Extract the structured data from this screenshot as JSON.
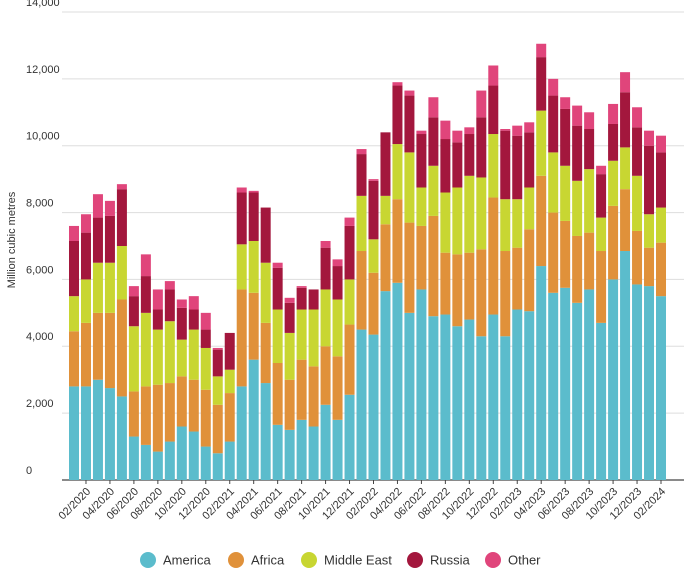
{
  "chart_data": {
    "type": "stacked_bar",
    "y_label": "Million cubic metres",
    "categories": [
      null,
      "02/2020",
      null,
      "04/2020",
      null,
      "06/2020",
      null,
      "08/2020",
      null,
      "10/2020",
      null,
      "12/2020",
      null,
      "02/2021",
      null,
      "04/2021",
      null,
      "06/2021",
      null,
      "08/2021",
      null,
      "10/2021",
      null,
      "12/2021",
      null,
      "02/2022",
      null,
      "04/2022",
      null,
      "06/2022",
      null,
      "08/2022",
      null,
      "10/2022",
      null,
      "12/2022",
      null,
      "02/2023",
      null,
      "04/2023",
      null,
      "06/2023",
      null,
      "08/2023",
      null,
      "10/2023",
      null,
      "12/2023",
      null,
      "02/2024"
    ],
    "series": [
      {
        "name": "America",
        "color": "#5bbccc",
        "values": [
          2800,
          2800,
          3000,
          2750,
          2500,
          1300,
          1050,
          850,
          1150,
          1600,
          1450,
          1000,
          800,
          1150,
          2800,
          3600,
          2900,
          1650,
          1500,
          1800,
          1600,
          2250,
          1800,
          2550,
          4500,
          4350,
          5650,
          5900,
          5000,
          5700,
          4900,
          4950,
          4600,
          4800,
          4300,
          4950,
          4300,
          5100,
          5050,
          6400,
          5600,
          5750,
          5300,
          5700,
          4700,
          6000,
          6850,
          5850,
          5800,
          5500
        ]
      },
      {
        "name": "Africa",
        "color": "#e0913a",
        "values": [
          1650,
          1900,
          2000,
          2250,
          2900,
          1350,
          1750,
          2000,
          1750,
          1500,
          1550,
          1700,
          1450,
          1450,
          2900,
          2000,
          1800,
          1850,
          1500,
          1800,
          1800,
          1750,
          1900,
          2100,
          2350,
          1850,
          2000,
          2500,
          2700,
          1900,
          3000,
          1850,
          2150,
          2000,
          2600,
          3500,
          2550,
          1850,
          2450,
          2700,
          2400,
          2000,
          2000,
          1700,
          2150,
          2200,
          1850,
          1600,
          1150,
          1600
        ]
      },
      {
        "name": "Middle East",
        "color": "#c8d632",
        "values": [
          1050,
          1300,
          1500,
          1500,
          1600,
          1950,
          2200,
          1650,
          1850,
          1100,
          1500,
          1250,
          850,
          700,
          1350,
          1550,
          1800,
          1600,
          1400,
          1500,
          1700,
          1700,
          1700,
          1350,
          1650,
          1000,
          850,
          1650,
          2100,
          1150,
          1500,
          1800,
          2000,
          2300,
          2150,
          1900,
          1550,
          1450,
          1250,
          1950,
          1800,
          1650,
          1650,
          1900,
          1000,
          1350,
          1250,
          1650,
          1000,
          1050
        ]
      },
      {
        "name": "Russia",
        "color": "#a3173d",
        "values": [
          1650,
          1400,
          1350,
          1400,
          1700,
          900,
          1100,
          600,
          950,
          950,
          600,
          550,
          800,
          1100,
          1550,
          1450,
          1650,
          1250,
          900,
          650,
          600,
          1250,
          1000,
          1600,
          1250,
          1750,
          1900,
          1750,
          1700,
          1600,
          1450,
          1600,
          1350,
          1250,
          1800,
          1450,
          2050,
          1900,
          1650,
          1600,
          1700,
          1700,
          1650,
          1200,
          1300,
          1100,
          1650,
          1450,
          2050,
          1650
        ]
      },
      {
        "name": "Other",
        "color": "#e0457b",
        "values": [
          450,
          550,
          700,
          450,
          150,
          300,
          650,
          600,
          250,
          250,
          400,
          500,
          50,
          0,
          150,
          50,
          0,
          150,
          150,
          50,
          0,
          200,
          200,
          250,
          150,
          50,
          0,
          100,
          150,
          100,
          600,
          550,
          350,
          200,
          800,
          600,
          50,
          300,
          300,
          400,
          500,
          350,
          600,
          500,
          250,
          600,
          600,
          600,
          450,
          500
        ]
      }
    ],
    "ylim": [
      0,
      14000
    ],
    "yticks": [
      0,
      {
        "value": 2000,
        "label": "2,000"
      },
      {
        "value": 4000,
        "label": "4,000"
      },
      {
        "value": 6000,
        "label": "6,000"
      },
      {
        "value": 8000,
        "label": "8,000"
      },
      {
        "value": 10000,
        "label": "10,000"
      },
      {
        "value": 12000,
        "label": "12,000"
      },
      {
        "value": 14000,
        "label": "14,000"
      }
    ],
    "grid": true,
    "legend": "bottom"
  }
}
